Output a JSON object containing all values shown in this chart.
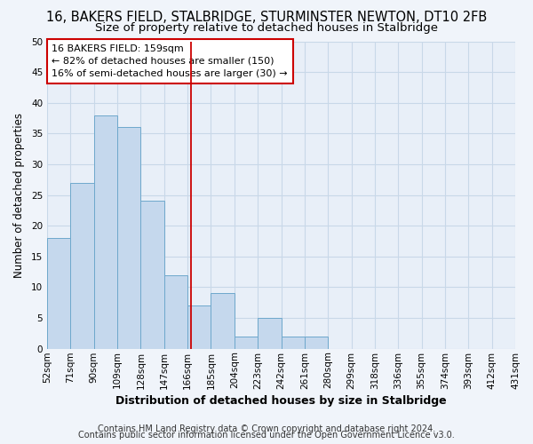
{
  "title": "16, BAKERS FIELD, STALBRIDGE, STURMINSTER NEWTON, DT10 2FB",
  "subtitle": "Size of property relative to detached houses in Stalbridge",
  "xlabel": "Distribution of detached houses by size in Stalbridge",
  "ylabel": "Number of detached properties",
  "bar_values": [
    18,
    27,
    38,
    36,
    24,
    12,
    7,
    9,
    2,
    5,
    2,
    2,
    0,
    0,
    0,
    0,
    0,
    0,
    0,
    0
  ],
  "bin_labels": [
    "52sqm",
    "71sqm",
    "90sqm",
    "109sqm",
    "128sqm",
    "147sqm",
    "166sqm",
    "185sqm",
    "204sqm",
    "223sqm",
    "242sqm",
    "261sqm",
    "280sqm",
    "299sqm",
    "318sqm",
    "336sqm",
    "355sqm",
    "374sqm",
    "393sqm",
    "412sqm",
    "431sqm"
  ],
  "bar_color": "#c5d8ed",
  "bar_edge_color": "#6ea8cc",
  "vline_color": "#cc0000",
  "vline_x": 5.63,
  "annotation_line1": "16 BAKERS FIELD: 159sqm",
  "annotation_line2": "← 82% of detached houses are smaller (150)",
  "annotation_line3": "16% of semi-detached houses are larger (30) →",
  "annotation_box_color": "#ffffff",
  "annotation_box_edge_color": "#cc0000",
  "ylim": [
    0,
    50
  ],
  "yticks": [
    0,
    5,
    10,
    15,
    20,
    25,
    30,
    35,
    40,
    45,
    50
  ],
  "grid_color": "#c8d8e8",
  "background_color": "#e8eff8",
  "fig_background_color": "#f0f4fa",
  "footer_line1": "Contains HM Land Registry data © Crown copyright and database right 2024.",
  "footer_line2": "Contains public sector information licensed under the Open Government Licence v3.0.",
  "title_fontsize": 10.5,
  "subtitle_fontsize": 9.5,
  "xlabel_fontsize": 9,
  "ylabel_fontsize": 8.5,
  "tick_fontsize": 7.5,
  "annotation_fontsize": 8,
  "footer_fontsize": 7
}
